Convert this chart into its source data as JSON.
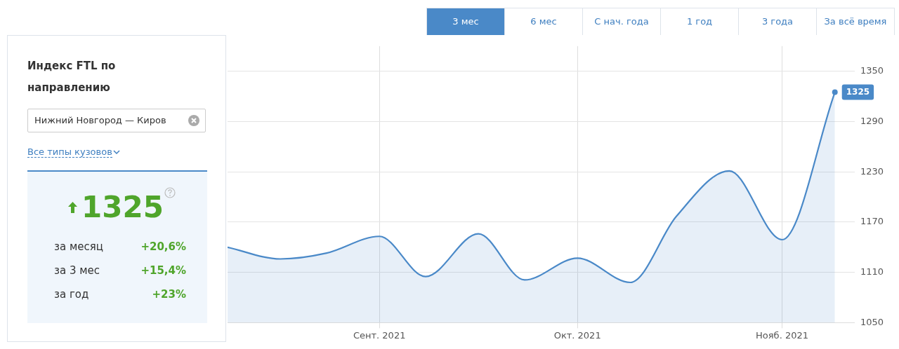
{
  "chart_data": {
    "type": "area",
    "title": "Индекс FTL по направлению",
    "subtitle": "Нижний Новгород — Киров",
    "annotations": [
      "3 мес",
      "6 мес",
      "С нач. года",
      "1 год",
      "3 года",
      "За всё время",
      "Все типы кузовов",
      "1325",
      "за месяц",
      "+20,6%",
      "за 3 мес",
      "+15,4%",
      "за год",
      "+23%"
    ],
    "x": [
      "2021-08-09",
      "2021-08-17",
      "2021-08-24",
      "2021-09-01",
      "2021-09-08",
      "2021-09-16",
      "2021-09-23",
      "2021-10-01",
      "2021-10-09",
      "2021-10-16",
      "2021-10-24",
      "2021-11-01",
      "2021-11-09"
    ],
    "series": [
      {
        "color": "#4a89c8",
        "values": [
          1140,
          1126,
          1133,
          1153,
          1105,
          1156,
          1101,
          1127,
          1098,
          1177,
          1231,
          1149,
          1325
        ],
        "value_labels": [
          null,
          null,
          null,
          null,
          null,
          null,
          null,
          null,
          null,
          null,
          null,
          null,
          "1325"
        ]
      }
    ],
    "xlim": [
      "2021-08-09",
      "2021-11-12"
    ],
    "xticks": [
      {
        "value": "2021-09-01",
        "label": "Сент. 2021"
      },
      {
        "value": "2021-10-01",
        "label": "Окт. 2021"
      },
      {
        "value": "2021-11-01",
        "label": "Нояб. 2021"
      }
    ],
    "ylim": [
      1050,
      1380
    ],
    "yticks": [
      1050,
      1110,
      1170,
      1230,
      1290,
      1350
    ],
    "grid": true,
    "legend": false,
    "marker": "none",
    "line_style": "solid"
  }
}
